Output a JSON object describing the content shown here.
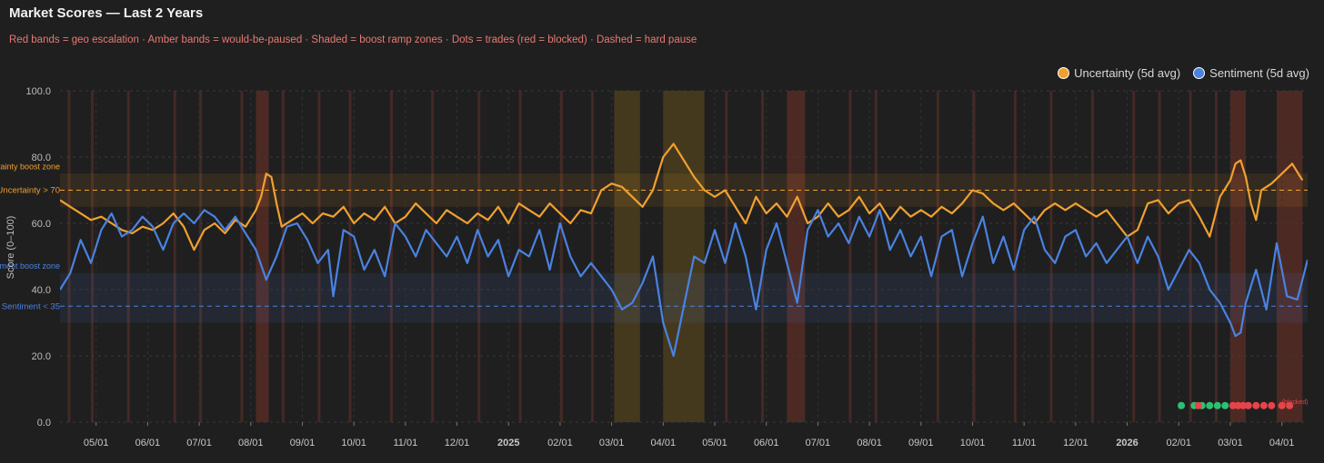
{
  "chart_data": {
    "type": "line",
    "title": "Market Scores — Last 2 Years",
    "subtitle": "Red bands = geo escalation · Amber bands = would-be-paused · Shaded = boost ramp zones · Dots = trades (red = blocked) · Dashed = hard pause",
    "ylabel": "Score (0–100)",
    "ylim": [
      0,
      100
    ],
    "yticks": [
      "0.0",
      "20.0",
      "40.0",
      "60.0",
      "80.0",
      "100.0"
    ],
    "ytick_values": [
      0,
      20,
      40,
      60,
      80,
      100
    ],
    "xlim_month_index": [
      3.3,
      27.5
    ],
    "xticks": [
      {
        "label": "05/01",
        "m": 4
      },
      {
        "label": "06/01",
        "m": 5
      },
      {
        "label": "07/01",
        "m": 6
      },
      {
        "label": "08/01",
        "m": 7
      },
      {
        "label": "09/01",
        "m": 8
      },
      {
        "label": "10/01",
        "m": 9
      },
      {
        "label": "11/01",
        "m": 10
      },
      {
        "label": "12/01",
        "m": 11
      },
      {
        "label": "2025",
        "m": 12,
        "bold": true
      },
      {
        "label": "02/01",
        "m": 13
      },
      {
        "label": "03/01",
        "m": 14
      },
      {
        "label": "04/01",
        "m": 15
      },
      {
        "label": "05/01",
        "m": 16
      },
      {
        "label": "06/01",
        "m": 17
      },
      {
        "label": "07/01",
        "m": 18
      },
      {
        "label": "08/01",
        "m": 19
      },
      {
        "label": "09/01",
        "m": 20
      },
      {
        "label": "10/01",
        "m": 21
      },
      {
        "label": "11/01",
        "m": 22
      },
      {
        "label": "12/01",
        "m": 23
      },
      {
        "label": "2026",
        "m": 24,
        "bold": true
      },
      {
        "label": "02/01",
        "m": 25
      },
      {
        "label": "03/01",
        "m": 26
      },
      {
        "label": "04/01",
        "m": 27
      }
    ],
    "legend_position": "top-right",
    "grid": true,
    "series": [
      {
        "name": "Uncertainty (5d avg)",
        "color": "#f0a030",
        "points": [
          [
            3.3,
            67
          ],
          [
            3.5,
            65
          ],
          [
            3.7,
            63
          ],
          [
            3.9,
            61
          ],
          [
            4.1,
            62
          ],
          [
            4.3,
            60
          ],
          [
            4.5,
            58
          ],
          [
            4.7,
            57
          ],
          [
            4.9,
            59
          ],
          [
            5.1,
            58
          ],
          [
            5.3,
            60
          ],
          [
            5.5,
            63
          ],
          [
            5.7,
            59
          ],
          [
            5.9,
            52
          ],
          [
            6.1,
            58
          ],
          [
            6.3,
            60
          ],
          [
            6.5,
            57
          ],
          [
            6.7,
            61
          ],
          [
            6.9,
            59
          ],
          [
            7.1,
            64
          ],
          [
            7.2,
            68
          ],
          [
            7.3,
            75
          ],
          [
            7.4,
            74
          ],
          [
            7.5,
            66
          ],
          [
            7.6,
            59
          ],
          [
            7.8,
            61
          ],
          [
            8.0,
            63
          ],
          [
            8.2,
            60
          ],
          [
            8.4,
            63
          ],
          [
            8.6,
            62
          ],
          [
            8.8,
            65
          ],
          [
            9.0,
            60
          ],
          [
            9.2,
            63
          ],
          [
            9.4,
            61
          ],
          [
            9.6,
            65
          ],
          [
            9.8,
            60
          ],
          [
            10.0,
            62
          ],
          [
            10.2,
            66
          ],
          [
            10.4,
            63
          ],
          [
            10.6,
            60
          ],
          [
            10.8,
            64
          ],
          [
            11.0,
            62
          ],
          [
            11.2,
            60
          ],
          [
            11.4,
            63
          ],
          [
            11.6,
            61
          ],
          [
            11.8,
            65
          ],
          [
            12.0,
            60
          ],
          [
            12.2,
            66
          ],
          [
            12.4,
            64
          ],
          [
            12.6,
            62
          ],
          [
            12.8,
            66
          ],
          [
            13.0,
            63
          ],
          [
            13.2,
            60
          ],
          [
            13.4,
            64
          ],
          [
            13.6,
            63
          ],
          [
            13.8,
            70
          ],
          [
            14.0,
            72
          ],
          [
            14.2,
            71
          ],
          [
            14.4,
            68
          ],
          [
            14.6,
            65
          ],
          [
            14.8,
            70
          ],
          [
            15.0,
            80
          ],
          [
            15.2,
            84
          ],
          [
            15.4,
            79
          ],
          [
            15.6,
            74
          ],
          [
            15.8,
            70
          ],
          [
            16.0,
            68
          ],
          [
            16.2,
            70
          ],
          [
            16.4,
            65
          ],
          [
            16.6,
            60
          ],
          [
            16.8,
            68
          ],
          [
            17.0,
            63
          ],
          [
            17.2,
            66
          ],
          [
            17.4,
            62
          ],
          [
            17.6,
            68
          ],
          [
            17.8,
            60
          ],
          [
            18.0,
            62
          ],
          [
            18.2,
            66
          ],
          [
            18.4,
            62
          ],
          [
            18.6,
            64
          ],
          [
            18.8,
            68
          ],
          [
            19.0,
            63
          ],
          [
            19.2,
            66
          ],
          [
            19.4,
            61
          ],
          [
            19.6,
            65
          ],
          [
            19.8,
            62
          ],
          [
            20.0,
            64
          ],
          [
            20.2,
            62
          ],
          [
            20.4,
            65
          ],
          [
            20.6,
            63
          ],
          [
            20.8,
            66
          ],
          [
            21.0,
            70
          ],
          [
            21.2,
            69
          ],
          [
            21.4,
            66
          ],
          [
            21.6,
            64
          ],
          [
            21.8,
            66
          ],
          [
            22.0,
            63
          ],
          [
            22.2,
            60
          ],
          [
            22.4,
            64
          ],
          [
            22.6,
            66
          ],
          [
            22.8,
            64
          ],
          [
            23.0,
            66
          ],
          [
            23.2,
            64
          ],
          [
            23.4,
            62
          ],
          [
            23.6,
            64
          ],
          [
            23.8,
            60
          ],
          [
            24.0,
            56
          ],
          [
            24.2,
            58
          ],
          [
            24.4,
            66
          ],
          [
            24.6,
            67
          ],
          [
            24.8,
            63
          ],
          [
            25.0,
            66
          ],
          [
            25.2,
            67
          ],
          [
            25.4,
            62
          ],
          [
            25.6,
            56
          ],
          [
            25.8,
            68
          ],
          [
            26.0,
            73
          ],
          [
            26.1,
            78
          ],
          [
            26.2,
            79
          ],
          [
            26.3,
            74
          ],
          [
            26.4,
            66
          ],
          [
            26.5,
            61
          ],
          [
            26.6,
            70
          ],
          [
            26.8,
            72
          ],
          [
            27.0,
            75
          ],
          [
            27.2,
            78
          ],
          [
            27.4,
            73
          ]
        ]
      },
      {
        "name": "Sentiment (5d avg)",
        "color": "#4a82e0",
        "points": [
          [
            3.3,
            40
          ],
          [
            3.5,
            45
          ],
          [
            3.7,
            55
          ],
          [
            3.9,
            48
          ],
          [
            4.1,
            58
          ],
          [
            4.3,
            63
          ],
          [
            4.5,
            56
          ],
          [
            4.7,
            58
          ],
          [
            4.9,
            62
          ],
          [
            5.1,
            59
          ],
          [
            5.3,
            52
          ],
          [
            5.5,
            60
          ],
          [
            5.7,
            63
          ],
          [
            5.9,
            60
          ],
          [
            6.1,
            64
          ],
          [
            6.3,
            62
          ],
          [
            6.5,
            58
          ],
          [
            6.7,
            62
          ],
          [
            6.9,
            57
          ],
          [
            7.1,
            52
          ],
          [
            7.3,
            43
          ],
          [
            7.5,
            50
          ],
          [
            7.7,
            59
          ],
          [
            7.9,
            60
          ],
          [
            8.1,
            55
          ],
          [
            8.3,
            48
          ],
          [
            8.5,
            52
          ],
          [
            8.6,
            38
          ],
          [
            8.8,
            58
          ],
          [
            9.0,
            56
          ],
          [
            9.2,
            46
          ],
          [
            9.4,
            52
          ],
          [
            9.6,
            44
          ],
          [
            9.8,
            60
          ],
          [
            10.0,
            56
          ],
          [
            10.2,
            50
          ],
          [
            10.4,
            58
          ],
          [
            10.6,
            54
          ],
          [
            10.8,
            50
          ],
          [
            11.0,
            56
          ],
          [
            11.2,
            48
          ],
          [
            11.4,
            58
          ],
          [
            11.6,
            50
          ],
          [
            11.8,
            55
          ],
          [
            12.0,
            44
          ],
          [
            12.2,
            52
          ],
          [
            12.4,
            50
          ],
          [
            12.6,
            58
          ],
          [
            12.8,
            46
          ],
          [
            13.0,
            60
          ],
          [
            13.2,
            50
          ],
          [
            13.4,
            44
          ],
          [
            13.6,
            48
          ],
          [
            13.8,
            44
          ],
          [
            14.0,
            40
          ],
          [
            14.2,
            34
          ],
          [
            14.4,
            36
          ],
          [
            14.6,
            42
          ],
          [
            14.8,
            50
          ],
          [
            15.0,
            30
          ],
          [
            15.2,
            20
          ],
          [
            15.4,
            35
          ],
          [
            15.6,
            50
          ],
          [
            15.8,
            48
          ],
          [
            16.0,
            58
          ],
          [
            16.2,
            48
          ],
          [
            16.4,
            60
          ],
          [
            16.6,
            50
          ],
          [
            16.8,
            34
          ],
          [
            17.0,
            52
          ],
          [
            17.2,
            60
          ],
          [
            17.4,
            48
          ],
          [
            17.6,
            36
          ],
          [
            17.8,
            58
          ],
          [
            18.0,
            64
          ],
          [
            18.2,
            56
          ],
          [
            18.4,
            60
          ],
          [
            18.6,
            54
          ],
          [
            18.8,
            62
          ],
          [
            19.0,
            56
          ],
          [
            19.2,
            64
          ],
          [
            19.4,
            52
          ],
          [
            19.6,
            58
          ],
          [
            19.8,
            50
          ],
          [
            20.0,
            56
          ],
          [
            20.2,
            44
          ],
          [
            20.4,
            56
          ],
          [
            20.6,
            58
          ],
          [
            20.8,
            44
          ],
          [
            21.0,
            54
          ],
          [
            21.2,
            62
          ],
          [
            21.4,
            48
          ],
          [
            21.6,
            56
          ],
          [
            21.8,
            46
          ],
          [
            22.0,
            58
          ],
          [
            22.2,
            62
          ],
          [
            22.4,
            52
          ],
          [
            22.6,
            48
          ],
          [
            22.8,
            56
          ],
          [
            23.0,
            58
          ],
          [
            23.2,
            50
          ],
          [
            23.4,
            54
          ],
          [
            23.6,
            48
          ],
          [
            23.8,
            52
          ],
          [
            24.0,
            56
          ],
          [
            24.2,
            48
          ],
          [
            24.4,
            56
          ],
          [
            24.6,
            50
          ],
          [
            24.8,
            40
          ],
          [
            25.0,
            46
          ],
          [
            25.2,
            52
          ],
          [
            25.4,
            48
          ],
          [
            25.6,
            40
          ],
          [
            25.8,
            36
          ],
          [
            26.0,
            30
          ],
          [
            26.1,
            26
          ],
          [
            26.2,
            27
          ],
          [
            26.3,
            36
          ],
          [
            26.5,
            46
          ],
          [
            26.7,
            34
          ],
          [
            26.9,
            54
          ],
          [
            27.1,
            38
          ],
          [
            27.3,
            37
          ],
          [
            27.5,
            49
          ]
        ]
      }
    ],
    "thresholds": [
      {
        "label": "Uncertainty > 70",
        "value": 70,
        "color": "#f0a030"
      },
      {
        "label": "Sentiment < 35",
        "value": 35,
        "color": "#4a82e0"
      }
    ],
    "boost_zones": [
      {
        "label": "Uncertainty boost zone",
        "from": 65,
        "to": 75,
        "color": "#f0a030"
      },
      {
        "label": "Sentiment boost zone",
        "from": 30,
        "to": 45,
        "color": "#4a82e0"
      }
    ],
    "amber_bands": [
      [
        14.05,
        14.55
      ],
      [
        15.0,
        15.8
      ]
    ],
    "red_bands": [
      [
        7.1,
        7.35
      ],
      [
        17.4,
        17.75
      ],
      [
        26.0,
        26.3
      ],
      [
        26.9,
        27.4
      ]
    ],
    "thin_bands": [
      3.45,
      3.9,
      4.6,
      5.5,
      6.0,
      6.8,
      7.6,
      8.3,
      8.9,
      9.7,
      10.5,
      11.4,
      12.2,
      13.0,
      13.6,
      16.2,
      16.9,
      18.6,
      19.1,
      20.3,
      21.0,
      21.8,
      22.5,
      23.3,
      24.1,
      24.6,
      25.2,
      25.7
    ],
    "trades": [
      {
        "m": 25.05,
        "blocked": false
      },
      {
        "m": 25.3,
        "blocked": false
      },
      {
        "m": 25.45,
        "blocked": false
      },
      {
        "m": 25.6,
        "blocked": false
      },
      {
        "m": 25.75,
        "blocked": false
      },
      {
        "m": 25.9,
        "blocked": false
      },
      {
        "m": 25.38,
        "blocked": true
      },
      {
        "m": 26.05,
        "blocked": true
      },
      {
        "m": 26.15,
        "blocked": true
      },
      {
        "m": 26.25,
        "blocked": true
      },
      {
        "m": 26.35,
        "blocked": true
      },
      {
        "m": 26.5,
        "blocked": true
      },
      {
        "m": 26.65,
        "blocked": true
      },
      {
        "m": 26.8,
        "blocked": true
      },
      {
        "m": 27.0,
        "blocked": true
      },
      {
        "m": 27.15,
        "blocked": true
      }
    ],
    "trade_label_fragment": "(blocked)",
    "trade_label_color": "#e8434a",
    "trade_label_tail": "d)"
  }
}
